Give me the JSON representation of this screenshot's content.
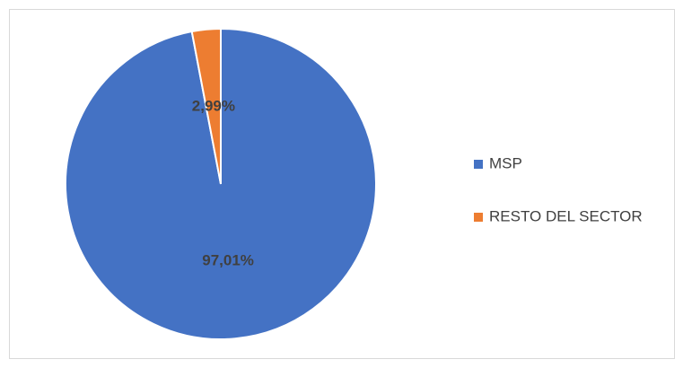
{
  "chart_data": {
    "type": "pie",
    "categories": [
      "MSP",
      "RESTO DEL SECTOR"
    ],
    "values": [
      97.01,
      2.99
    ],
    "value_labels": [
      "97,01%",
      "2,99%"
    ],
    "colors": [
      "#4472c4",
      "#ed7d31"
    ],
    "legend": "right"
  }
}
